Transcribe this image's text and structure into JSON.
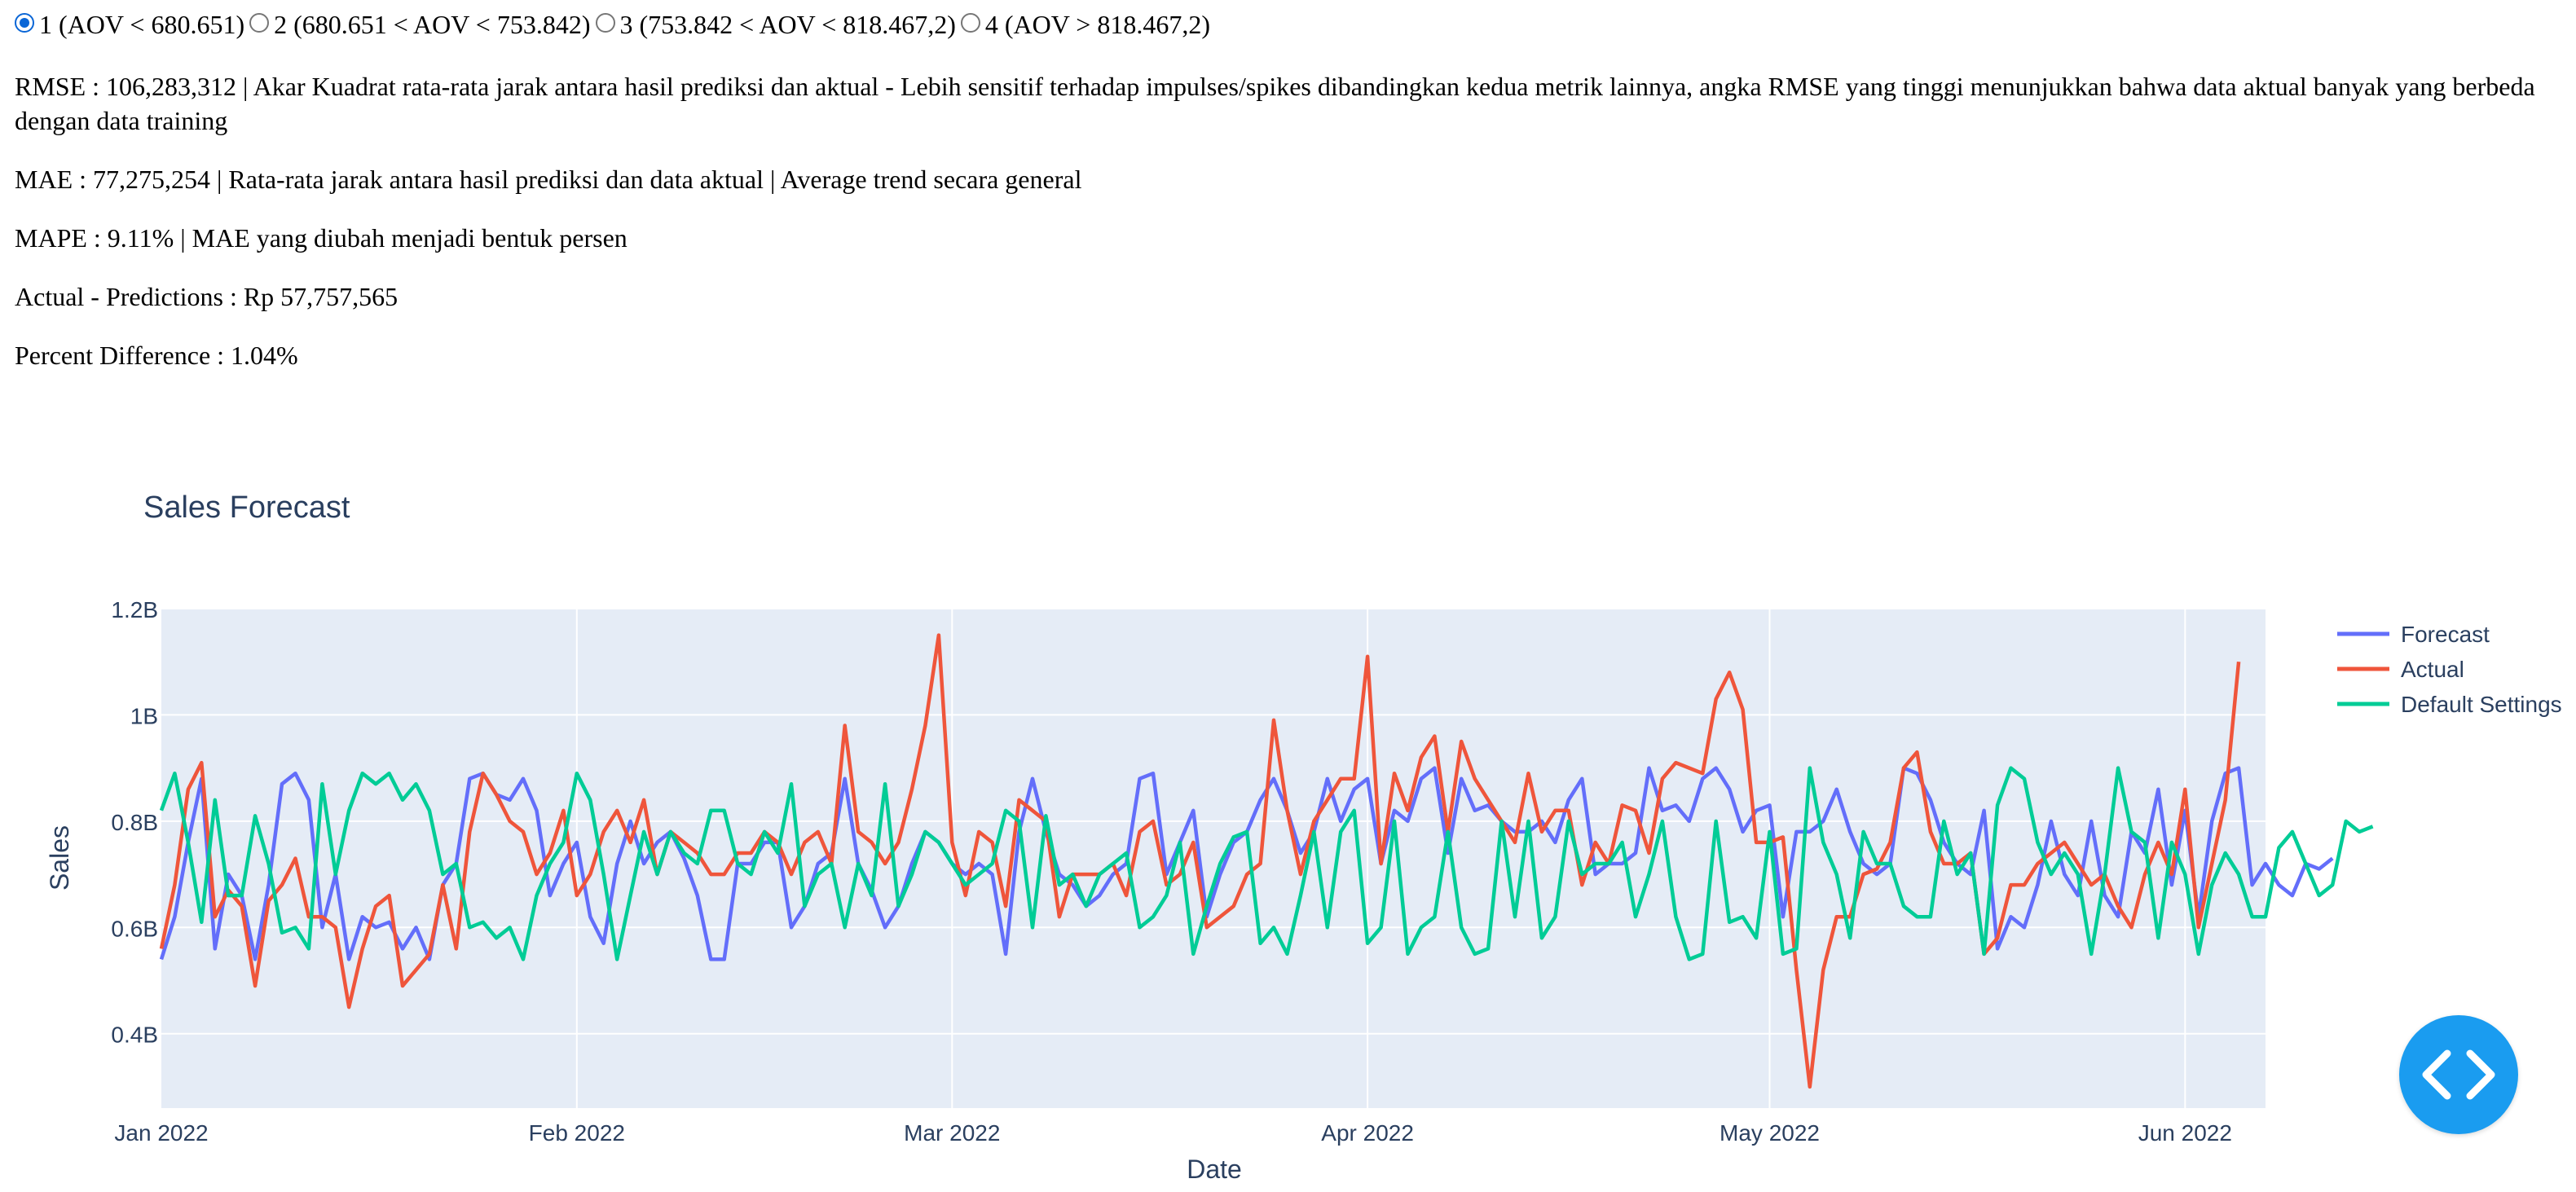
{
  "segment_options": [
    {
      "label": "1 (AOV < 680.651)",
      "checked": true
    },
    {
      "label": "2 (680.651 < AOV < 753.842)",
      "checked": false
    },
    {
      "label": "3 (753.842 < AOV < 818.467,2)",
      "checked": false
    },
    {
      "label": "4 (AOV > 818.467,2)",
      "checked": false
    }
  ],
  "metrics": {
    "rmse": "RMSE : 106,283,312 | Akar Kuadrat rata-rata jarak antara hasil prediksi dan aktual - Lebih sensitif terhadap impulses/spikes dibandingkan kedua metrik lainnya, angka RMSE yang tinggi menunjukkan bahwa data aktual banyak yang berbeda dengan data training",
    "mae": "MAE : 77,275,254 | Rata-rata jarak antara hasil prediksi dan data aktual | Average trend secara general",
    "mape": "MAPE : 9.11% | MAE yang diubah menjadi bentuk persen",
    "diff": "Actual - Predictions : Rp 57,757,565",
    "pct": "Percent Difference : 1.04%"
  },
  "colors": {
    "forecast": "#636efa",
    "actual": "#ef553b",
    "default": "#00cc96",
    "plot_bg": "#e5ecf6",
    "fab": "#1a9cf0"
  },
  "fab_icon": "code-icon",
  "chart_data": {
    "type": "line",
    "title": "Sales Forecast",
    "xlabel": "Date",
    "ylabel": "Sales",
    "x_start": "2022-01-01",
    "x_range": [
      "2022-01-01",
      "2022-06-07"
    ],
    "ylim": [
      0.26,
      1.2
    ],
    "y_ticks": [
      0.4,
      0.6,
      0.8,
      1.0,
      1.2
    ],
    "y_tick_labels": [
      "0.4B",
      "0.6B",
      "0.8B",
      "1B",
      "1.2B"
    ],
    "x_ticks": [
      "2022-01-01",
      "2022-02-01",
      "2022-03-01",
      "2022-04-01",
      "2022-05-01",
      "2022-06-01"
    ],
    "x_tick_labels": [
      "Jan 2022",
      "Feb 2022",
      "Mar 2022",
      "Apr 2022",
      "May 2022",
      "Jun 2022"
    ],
    "unit": "billions",
    "grid": true,
    "legend": "right",
    "series": [
      {
        "name": "Forecast",
        "color": "#636efa",
        "values": [
          0.54,
          0.62,
          0.76,
          0.88,
          0.56,
          0.7,
          0.66,
          0.54,
          0.68,
          0.87,
          0.89,
          0.84,
          0.6,
          0.7,
          0.54,
          0.62,
          0.6,
          0.61,
          0.56,
          0.6,
          0.54,
          0.68,
          0.72,
          0.88,
          0.89,
          0.85,
          0.84,
          0.88,
          0.82,
          0.66,
          0.72,
          0.76,
          0.62,
          0.57,
          0.72,
          0.8,
          0.72,
          0.76,
          0.78,
          0.73,
          0.66,
          0.54,
          0.54,
          0.72,
          0.72,
          0.76,
          0.76,
          0.6,
          0.64,
          0.72,
          0.74,
          0.88,
          0.72,
          0.67,
          0.6,
          0.64,
          0.72,
          0.78,
          0.76,
          0.72,
          0.7,
          0.72,
          0.7,
          0.55,
          0.78,
          0.88,
          0.78,
          0.7,
          0.68,
          0.64,
          0.66,
          0.7,
          0.72,
          0.88,
          0.89,
          0.7,
          0.76,
          0.82,
          0.62,
          0.7,
          0.76,
          0.78,
          0.84,
          0.88,
          0.82,
          0.74,
          0.78,
          0.88,
          0.8,
          0.86,
          0.88,
          0.72,
          0.82,
          0.8,
          0.88,
          0.9,
          0.74,
          0.88,
          0.82,
          0.83,
          0.8,
          0.78,
          0.78,
          0.8,
          0.76,
          0.84,
          0.88,
          0.7,
          0.72,
          0.72,
          0.74,
          0.9,
          0.82,
          0.83,
          0.8,
          0.88,
          0.9,
          0.86,
          0.78,
          0.82,
          0.83,
          0.62,
          0.78,
          0.78,
          0.8,
          0.86,
          0.78,
          0.72,
          0.7,
          0.72,
          0.9,
          0.89,
          0.84,
          0.76,
          0.72,
          0.7,
          0.82,
          0.56,
          0.62,
          0.6,
          0.68,
          0.8,
          0.7,
          0.66,
          0.8,
          0.66,
          0.62,
          0.78,
          0.74,
          0.86,
          0.68,
          0.82,
          0.62,
          0.8,
          0.89,
          0.9,
          0.68,
          0.72,
          0.68,
          0.66,
          0.72,
          0.71,
          0.73
        ]
      },
      {
        "name": "Actual",
        "color": "#ef553b",
        "values": [
          0.56,
          0.68,
          0.86,
          0.91,
          0.62,
          0.67,
          0.64,
          0.49,
          0.65,
          0.68,
          0.73,
          0.62,
          0.62,
          0.6,
          0.45,
          0.56,
          0.64,
          0.66,
          0.49,
          0.52,
          0.55,
          0.68,
          0.56,
          0.78,
          0.89,
          0.85,
          0.8,
          0.78,
          0.7,
          0.74,
          0.82,
          0.66,
          0.7,
          0.78,
          0.82,
          0.76,
          0.84,
          0.7,
          0.78,
          0.76,
          0.74,
          0.7,
          0.7,
          0.74,
          0.74,
          0.78,
          0.76,
          0.7,
          0.76,
          0.78,
          0.72,
          0.98,
          0.78,
          0.76,
          0.72,
          0.76,
          0.86,
          0.98,
          1.15,
          0.76,
          0.66,
          0.78,
          0.76,
          0.64,
          0.84,
          0.82,
          0.8,
          0.62,
          0.7,
          0.7,
          0.7,
          0.72,
          0.66,
          0.78,
          0.8,
          0.68,
          0.7,
          0.76,
          0.6,
          0.62,
          0.64,
          0.7,
          0.72,
          0.99,
          0.82,
          0.7,
          0.8,
          0.84,
          0.88,
          0.88,
          1.11,
          0.72,
          0.89,
          0.82,
          0.92,
          0.96,
          0.78,
          0.95,
          0.88,
          0.84,
          0.8,
          0.76,
          0.89,
          0.78,
          0.82,
          0.82,
          0.68,
          0.76,
          0.72,
          0.83,
          0.82,
          0.74,
          0.88,
          0.91,
          0.9,
          0.89,
          1.03,
          1.08,
          1.01,
          0.76,
          0.76,
          0.77,
          0.52,
          0.3,
          0.52,
          0.62,
          0.62,
          0.7,
          0.71,
          0.76,
          0.9,
          0.93,
          0.78,
          0.72,
          0.72,
          0.74,
          0.55,
          0.58,
          0.68,
          0.68,
          0.72,
          0.74,
          0.76,
          0.72,
          0.68,
          0.7,
          0.64,
          0.6,
          0.7,
          0.76,
          0.7,
          0.86,
          0.6,
          0.72,
          0.84,
          1.1
        ]
      },
      {
        "name": "Default Settings",
        "color": "#00cc96",
        "values": [
          0.82,
          0.89,
          0.76,
          0.61,
          0.84,
          0.66,
          0.66,
          0.81,
          0.72,
          0.59,
          0.6,
          0.56,
          0.87,
          0.7,
          0.82,
          0.89,
          0.87,
          0.89,
          0.84,
          0.87,
          0.82,
          0.7,
          0.72,
          0.6,
          0.61,
          0.58,
          0.6,
          0.54,
          0.66,
          0.72,
          0.76,
          0.89,
          0.84,
          0.7,
          0.54,
          0.66,
          0.78,
          0.7,
          0.78,
          0.74,
          0.72,
          0.82,
          0.82,
          0.72,
          0.7,
          0.78,
          0.74,
          0.87,
          0.64,
          0.7,
          0.72,
          0.6,
          0.72,
          0.66,
          0.87,
          0.64,
          0.7,
          0.78,
          0.76,
          0.72,
          0.68,
          0.7,
          0.72,
          0.82,
          0.8,
          0.6,
          0.81,
          0.68,
          0.7,
          0.64,
          0.7,
          0.72,
          0.74,
          0.6,
          0.62,
          0.66,
          0.76,
          0.55,
          0.64,
          0.72,
          0.77,
          0.78,
          0.57,
          0.6,
          0.55,
          0.66,
          0.78,
          0.6,
          0.78,
          0.82,
          0.57,
          0.6,
          0.8,
          0.55,
          0.6,
          0.62,
          0.78,
          0.6,
          0.55,
          0.56,
          0.8,
          0.62,
          0.8,
          0.58,
          0.62,
          0.8,
          0.7,
          0.72,
          0.72,
          0.76,
          0.62,
          0.7,
          0.8,
          0.62,
          0.54,
          0.55,
          0.8,
          0.61,
          0.62,
          0.58,
          0.78,
          0.55,
          0.56,
          0.9,
          0.76,
          0.7,
          0.58,
          0.78,
          0.72,
          0.72,
          0.64,
          0.62,
          0.62,
          0.8,
          0.7,
          0.74,
          0.55,
          0.83,
          0.9,
          0.88,
          0.76,
          0.7,
          0.74,
          0.7,
          0.55,
          0.7,
          0.9,
          0.78,
          0.76,
          0.58,
          0.76,
          0.7,
          0.55,
          0.68,
          0.74,
          0.7,
          0.62,
          0.62,
          0.75,
          0.78,
          0.72,
          0.66,
          0.68,
          0.8,
          0.78,
          0.79
        ]
      }
    ]
  }
}
